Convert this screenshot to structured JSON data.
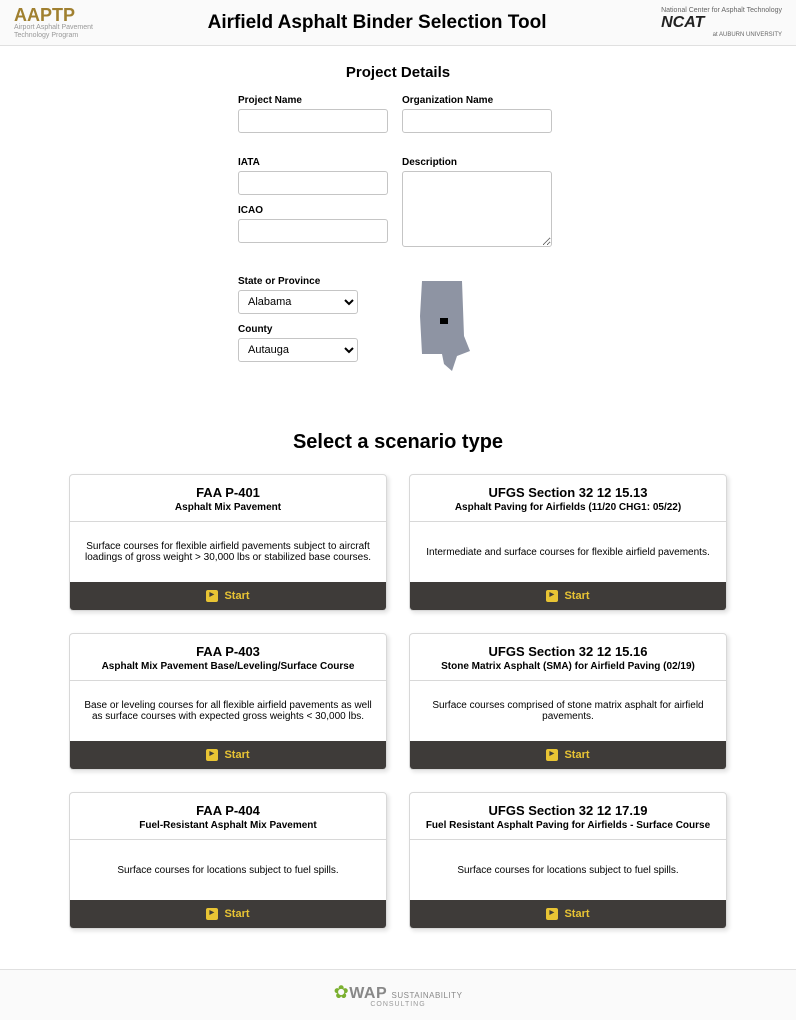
{
  "header": {
    "logo_left": "AAPTP",
    "logo_left_sub1": "Airport Asphalt Pavement",
    "logo_left_sub2": "Technology Program",
    "title": "Airfield Asphalt Binder Selection Tool",
    "logo_right_sup": "National Center for\nAsphalt Technology",
    "logo_right": "NCAT",
    "logo_right_sub": "at AUBURN UNIVERSITY"
  },
  "project": {
    "section_title": "Project Details",
    "labels": {
      "project_name": "Project Name",
      "org": "Organization Name",
      "iata": "IATA",
      "desc": "Description",
      "icao": "ICAO",
      "state": "State or Province",
      "county": "County"
    },
    "values": {
      "project_name": "",
      "org": "",
      "iata": "",
      "desc": "",
      "icao": "",
      "state": "Alabama",
      "county": "Autauga"
    },
    "shape_fill": "#8e94a3"
  },
  "scenario": {
    "title": "Select a scenario type",
    "start_label": "Start",
    "cards": [
      {
        "title": "FAA P-401",
        "subtitle": "Asphalt Mix Pavement",
        "body": "Surface courses for flexible airfield pavements subject to aircraft loadings of gross weight > 30,000 lbs or stabilized base courses."
      },
      {
        "title": "UFGS Section 32 12 15.13",
        "subtitle": "Asphalt Paving for Airfields (11/20 CHG1: 05/22)",
        "body": "Intermediate and surface courses for flexible airfield pavements."
      },
      {
        "title": "FAA P-403",
        "subtitle": "Asphalt Mix Pavement Base/Leveling/Surface Course",
        "body": "Base or leveling courses for all flexible airfield pavements as well as surface courses with expected gross weights < 30,000 lbs."
      },
      {
        "title": "UFGS Section 32 12 15.16",
        "subtitle": "Stone Matrix Asphalt (SMA) for Airfield Paving (02/19)",
        "body": "Surface courses comprised of stone matrix asphalt for airfield pavements."
      },
      {
        "title": "FAA P-404",
        "subtitle": "Fuel-Resistant Asphalt Mix Pavement",
        "body": "Surface courses for locations subject to fuel spills."
      },
      {
        "title": "UFGS Section 32 12 17.19",
        "subtitle": "Fuel Resistant Asphalt Paving for Airfields - Surface Course",
        "body": "Surface courses for locations subject to fuel spills."
      }
    ]
  },
  "footer": {
    "brand": "WAP",
    "brand_tag": "SUSTAINABILITY",
    "brand_sub": "CONSULTING"
  }
}
